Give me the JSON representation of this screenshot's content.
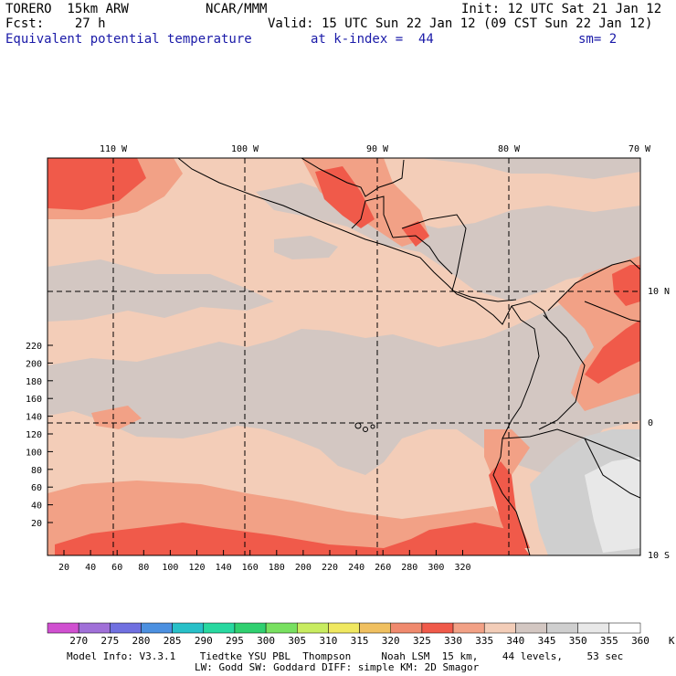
{
  "header": {
    "model_line": "TORERO  15km ARW",
    "center": "NCAR/MMM",
    "init": "Init: 12 UTC Sat 21 Jan 12",
    "fcst_line": "Fcst:    27 h",
    "valid": "Valid: 15 UTC Sun 22 Jan 12 (09 CST Sun 22 Jan 12)",
    "field": "Equivalent potential temperature",
    "level": "at k-index =  44",
    "smoothing": "sm= 2"
  },
  "map": {
    "longitude_labels": [
      "110 W",
      "100 W",
      "90 W",
      "80 W",
      "70 W"
    ],
    "latitude_labels": [
      "10 N",
      "0",
      "10 S"
    ],
    "x_axis_ticks": [
      "20",
      "40",
      "60",
      "80",
      "100",
      "120",
      "140",
      "160",
      "180",
      "200",
      "220",
      "240",
      "260",
      "280",
      "300",
      "320"
    ],
    "y_axis_ticks": [
      "20",
      "40",
      "60",
      "80",
      "100",
      "120",
      "140",
      "160",
      "180",
      "200",
      "220"
    ],
    "colors": {
      "c325": "#f08a6e",
      "c330": "#f05a4a",
      "c335": "#f2a186",
      "c340": "#f3cdb8",
      "c345": "#d3c7c2",
      "c350": "#cfcfcf",
      "c355": "#e8e8e8",
      "coast": "#000000",
      "grid": "#000000"
    }
  },
  "colorbar": {
    "labels": [
      "270",
      "275",
      "280",
      "285",
      "290",
      "295",
      "300",
      "305",
      "310",
      "315",
      "320",
      "325",
      "330",
      "335",
      "340",
      "345",
      "350",
      "355",
      "360",
      "K"
    ],
    "colors": [
      "#d050d0",
      "#a070d8",
      "#7070e0",
      "#4c90e0",
      "#28c0c8",
      "#28d8a0",
      "#30d070",
      "#78e060",
      "#c8ec60",
      "#f0e860",
      "#f0c060",
      "#f08a6e",
      "#f05a4a",
      "#f2a186",
      "#f3cdb8",
      "#d3c7c2",
      "#cfcfcf",
      "#e8e8e8",
      "#ffffff"
    ]
  },
  "footer": {
    "line1": "Model Info: V3.3.1    Tiedtke YSU PBL  Thompson     Noah LSM  15 km,    44 levels,    53 sec",
    "line2": "LW: Godd SW: Goddard DIFF: simple KM: 2D Smagor"
  }
}
